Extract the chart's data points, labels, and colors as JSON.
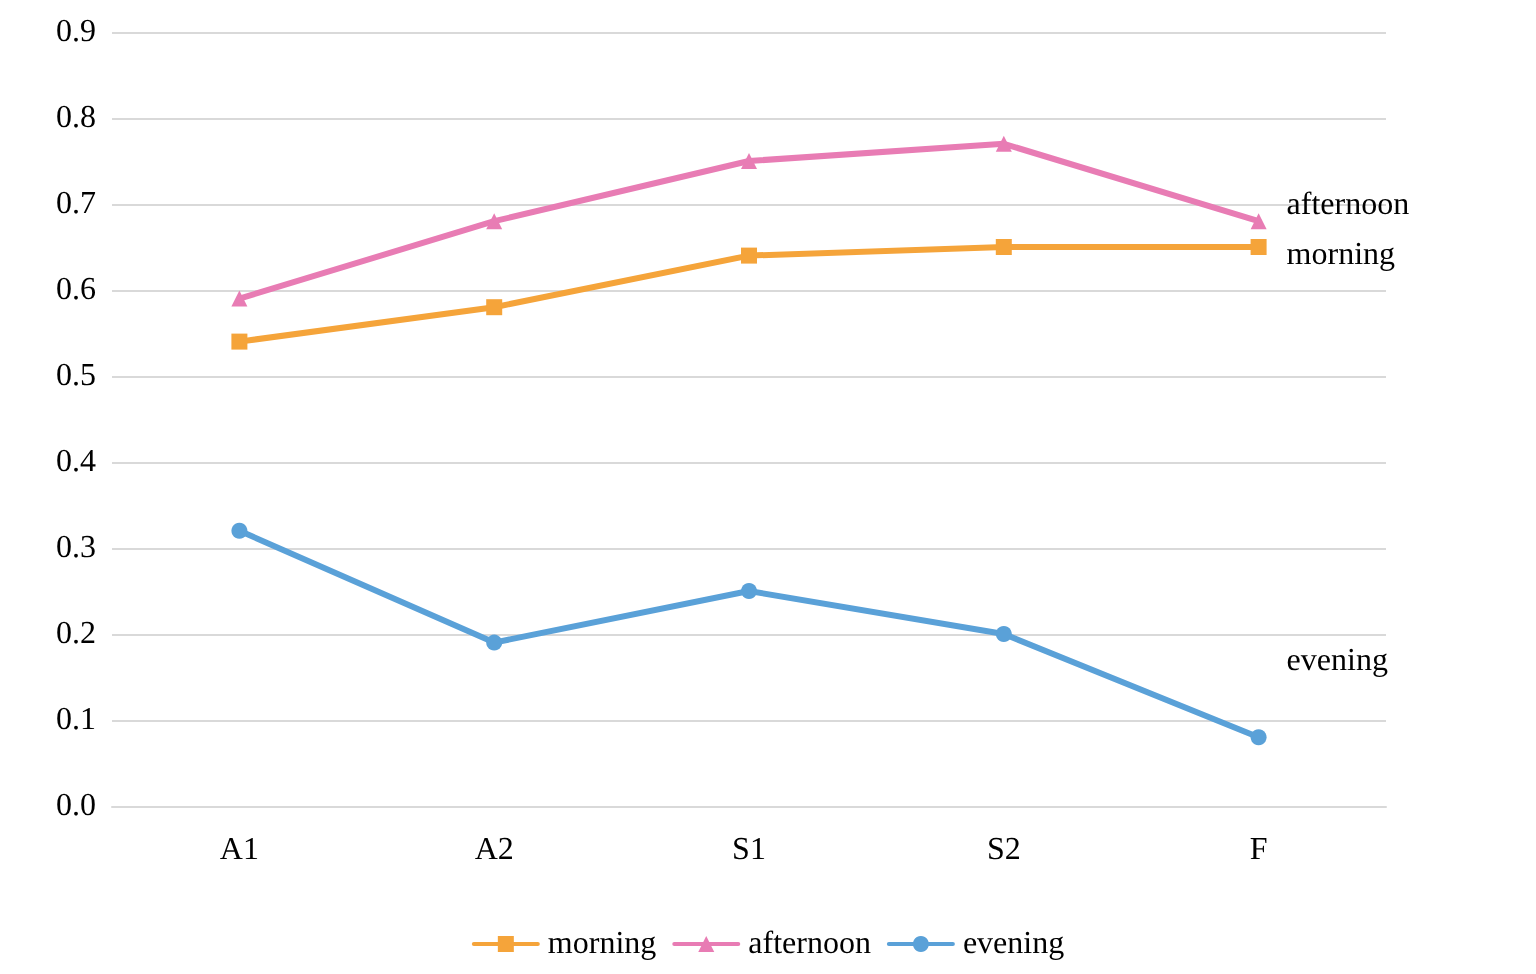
{
  "chart_data": {
    "type": "line",
    "categories": [
      "A1",
      "A2",
      "S1",
      "S2",
      "F"
    ],
    "series": [
      {
        "name": "morning",
        "color": "#f5a43a",
        "marker": "square",
        "values": [
          0.54,
          0.58,
          0.64,
          0.65,
          0.65
        ]
      },
      {
        "name": "afternoon",
        "color": "#e87cb4",
        "marker": "triangle",
        "values": [
          0.59,
          0.68,
          0.75,
          0.77,
          0.68
        ]
      },
      {
        "name": "evening",
        "color": "#5aa1d8",
        "marker": "circle",
        "values": [
          0.32,
          0.19,
          0.25,
          0.2,
          0.08
        ]
      }
    ],
    "ylim": [
      0,
      0.9
    ],
    "yticks": [
      {
        "value": 0,
        "label": "0.0"
      },
      0.1,
      0.2,
      0.3,
      0.4,
      0.5,
      0.6,
      0.7,
      0.8,
      0.9
    ],
    "grid": "y",
    "legend": "bottom",
    "line_style": "solid"
  }
}
